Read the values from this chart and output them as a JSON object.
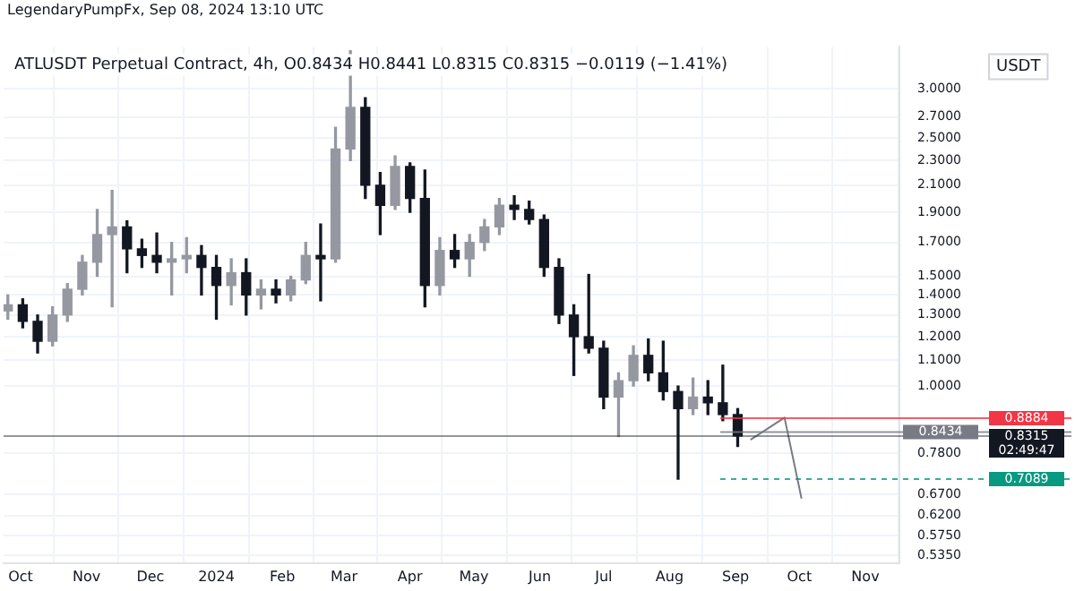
{
  "chart_data": {
    "type": "candlestick",
    "title": "ATLUSDT Perpetual Contract, 4h, O0.8434 H0.8441 L0.8315 C0.8315 −0.0119 (−1.41%)",
    "ylabel": "USDT",
    "annotations": [
      "LegendaryPumpFx, Sep 08, 2024 13:10 UTC",
      "02:49:47"
    ],
    "log": "y",
    "grid": true,
    "legend": false,
    "xlim": [
      "2023-09-23",
      "2024-11-17"
    ],
    "xticks": [
      {
        "value": "2023-10-01",
        "label": "Oct"
      },
      {
        "value": "2023-11-01",
        "label": "Nov"
      },
      {
        "value": "2023-12-01",
        "label": "Dec"
      },
      {
        "value": "2024-01-01",
        "label": "2024"
      },
      {
        "value": "2024-02-01",
        "label": "Feb"
      },
      {
        "value": "2024-03-01",
        "label": "Mar"
      },
      {
        "value": "2024-04-01",
        "label": "Apr"
      },
      {
        "value": "2024-05-01",
        "label": "May"
      },
      {
        "value": "2024-06-01",
        "label": "Jun"
      },
      {
        "value": "2024-07-01",
        "label": "Jul"
      },
      {
        "value": "2024-08-01",
        "label": "Aug"
      },
      {
        "value": "2024-09-01",
        "label": "Sep"
      },
      {
        "value": "2024-10-01",
        "label": "Oct"
      },
      {
        "value": "2024-11-01",
        "label": "Nov"
      }
    ],
    "ylim": [
      0.52,
      3.5
    ],
    "yticks": [
      {
        "value": 3,
        "label": "3.0000"
      },
      {
        "value": 2.7,
        "label": "2.7000"
      },
      {
        "value": 2.5,
        "label": "2.5000"
      },
      {
        "value": 2.3,
        "label": "2.3000"
      },
      {
        "value": 2.1,
        "label": "2.1000"
      },
      {
        "value": 1.9,
        "label": "1.9000"
      },
      {
        "value": 1.7,
        "label": "1.7000"
      },
      {
        "value": 1.5,
        "label": "1.5000"
      },
      {
        "value": 1.4,
        "label": "1.4000"
      },
      {
        "value": 1.3,
        "label": "1.3000"
      },
      {
        "value": 1.2,
        "label": "1.2000"
      },
      {
        "value": 1.1,
        "label": "1.1000"
      },
      {
        "value": 1,
        "label": "1.0000"
      },
      {
        "value": 0.78,
        "label": "0.7800"
      },
      {
        "value": 0.67,
        "label": "0.6700"
      },
      {
        "value": 0.62,
        "label": "0.6200"
      },
      {
        "value": 0.575,
        "label": "0.5750"
      },
      {
        "value": 0.535,
        "label": "0.5350"
      }
    ],
    "ref_lines": [
      {
        "axis": "y",
        "value": 0.8315,
        "label": "0.8315",
        "color": "#131722"
      },
      {
        "axis": "y",
        "value": 0.8884,
        "label": "0.8884",
        "color": "#f23645"
      },
      {
        "axis": "y",
        "value": 0.8434,
        "label": "0.8434",
        "color": "#787b86"
      },
      {
        "axis": "y",
        "value": 0.7089,
        "label": "0.7089",
        "color": "#089981",
        "line_style": "dashed"
      }
    ],
    "series": [
      {
        "colors": [
          "#9598a1",
          "#131722",
          "#131722",
          "#9598a1",
          "#9598a1",
          "#9598a1",
          "#9598a1",
          "#9598a1",
          "#131722",
          "#131722",
          "#131722",
          "#9598a1",
          "#9598a1",
          "#131722",
          "#131722",
          "#9598a1",
          "#131722",
          "#9598a1",
          "#131722",
          "#9598a1",
          "#9598a1",
          "#131722",
          "#9598a1",
          "#9598a1",
          "#131722",
          "#131722",
          "#9598a1",
          "#131722",
          "#131722",
          "#9598a1",
          "#131722",
          "#9598a1",
          "#9598a1",
          "#9598a1",
          "#131722",
          "#131722",
          "#131722",
          "#131722",
          "#131722",
          "#131722",
          "#131722",
          "#9598a1",
          "#9598a1",
          "#131722",
          "#131722",
          "#131722",
          "#9598a1",
          "#131722",
          "#131722",
          "#131722"
        ],
        "x": [
          "2023-09-25",
          "2023-10-02",
          "2023-10-09",
          "2023-10-16",
          "2023-10-23",
          "2023-10-30",
          "2023-11-06",
          "2023-11-13",
          "2023-11-20",
          "2023-11-27",
          "2023-12-04",
          "2023-12-11",
          "2023-12-18",
          "2023-12-25",
          "2024-01-01",
          "2024-01-08",
          "2024-01-15",
          "2024-01-22",
          "2024-01-29",
          "2024-02-05",
          "2024-02-12",
          "2024-02-19",
          "2024-02-26",
          "2024-03-04",
          "2024-03-11",
          "2024-03-18",
          "2024-03-25",
          "2024-04-01",
          "2024-04-08",
          "2024-04-15",
          "2024-04-22",
          "2024-04-29",
          "2024-05-06",
          "2024-05-13",
          "2024-05-20",
          "2024-05-27",
          "2024-06-03",
          "2024-06-10",
          "2024-06-17",
          "2024-06-24",
          "2024-07-01",
          "2024-07-08",
          "2024-07-15",
          "2024-07-22",
          "2024-07-29",
          "2024-08-05",
          "2024-08-12",
          "2024-08-19",
          "2024-08-26",
          "2024-09-02"
        ],
        "ohlc": [
          [
            1.32,
            1.4,
            1.28,
            1.35
          ],
          [
            1.35,
            1.38,
            1.24,
            1.27
          ],
          [
            1.27,
            1.3,
            1.13,
            1.18
          ],
          [
            1.18,
            1.34,
            1.16,
            1.3
          ],
          [
            1.3,
            1.46,
            1.27,
            1.43
          ],
          [
            1.43,
            1.62,
            1.4,
            1.58
          ],
          [
            1.58,
            1.92,
            1.5,
            1.75
          ],
          [
            1.75,
            2.06,
            1.34,
            1.8
          ],
          [
            1.8,
            1.84,
            1.52,
            1.66
          ],
          [
            1.66,
            1.72,
            1.55,
            1.62
          ],
          [
            1.62,
            1.76,
            1.52,
            1.58
          ],
          [
            1.58,
            1.7,
            1.4,
            1.6
          ],
          [
            1.6,
            1.73,
            1.52,
            1.62
          ],
          [
            1.62,
            1.68,
            1.4,
            1.55
          ],
          [
            1.55,
            1.62,
            1.28,
            1.45
          ],
          [
            1.45,
            1.6,
            1.35,
            1.52
          ],
          [
            1.52,
            1.6,
            1.3,
            1.4
          ],
          [
            1.4,
            1.48,
            1.33,
            1.43
          ],
          [
            1.43,
            1.48,
            1.36,
            1.4
          ],
          [
            1.4,
            1.5,
            1.37,
            1.48
          ],
          [
            1.48,
            1.7,
            1.46,
            1.62
          ],
          [
            1.62,
            1.82,
            1.37,
            1.6
          ],
          [
            1.6,
            2.6,
            1.58,
            2.4
          ],
          [
            2.4,
            3.45,
            2.3,
            2.8
          ],
          [
            2.8,
            2.9,
            2,
            2.1
          ],
          [
            2.1,
            2.2,
            1.75,
            1.95
          ],
          [
            1.95,
            2.34,
            1.92,
            2.25
          ],
          [
            2.25,
            2.28,
            1.9,
            2
          ],
          [
            2,
            2.22,
            1.34,
            1.45
          ],
          [
            1.45,
            1.73,
            1.4,
            1.65
          ],
          [
            1.65,
            1.75,
            1.55,
            1.6
          ],
          [
            1.6,
            1.75,
            1.5,
            1.7
          ],
          [
            1.7,
            1.85,
            1.65,
            1.8
          ],
          [
            1.8,
            2,
            1.75,
            1.95
          ],
          [
            1.95,
            2.02,
            1.85,
            1.92
          ],
          [
            1.92,
            1.98,
            1.82,
            1.85
          ],
          [
            1.85,
            1.88,
            1.5,
            1.55
          ],
          [
            1.55,
            1.6,
            1.26,
            1.3
          ],
          [
            1.3,
            1.35,
            1.04,
            1.2
          ],
          [
            1.2,
            1.51,
            1.13,
            1.15
          ],
          [
            1.15,
            1.18,
            0.92,
            0.96
          ],
          [
            0.96,
            1.05,
            0.83,
            1.02
          ],
          [
            1.02,
            1.16,
            1,
            1.12
          ],
          [
            1.12,
            1.19,
            1.02,
            1.05
          ],
          [
            1.05,
            1.18,
            0.95,
            0.98
          ],
          [
            0.98,
            1,
            0.7089,
            0.92
          ],
          [
            0.92,
            1.03,
            0.9,
            0.96
          ],
          [
            0.96,
            1.02,
            0.9,
            0.94
          ],
          [
            0.94,
            1.08,
            0.88,
            0.9
          ],
          [
            0.9,
            0.92,
            0.8,
            0.8315
          ]
        ]
      },
      {
        "type": "line",
        "color": "#787b86",
        "x": [
          "2024-09-08",
          "2024-09-24",
          "2024-10-02"
        ],
        "values": [
          0.82,
          0.89,
          0.66
        ]
      }
    ]
  }
}
